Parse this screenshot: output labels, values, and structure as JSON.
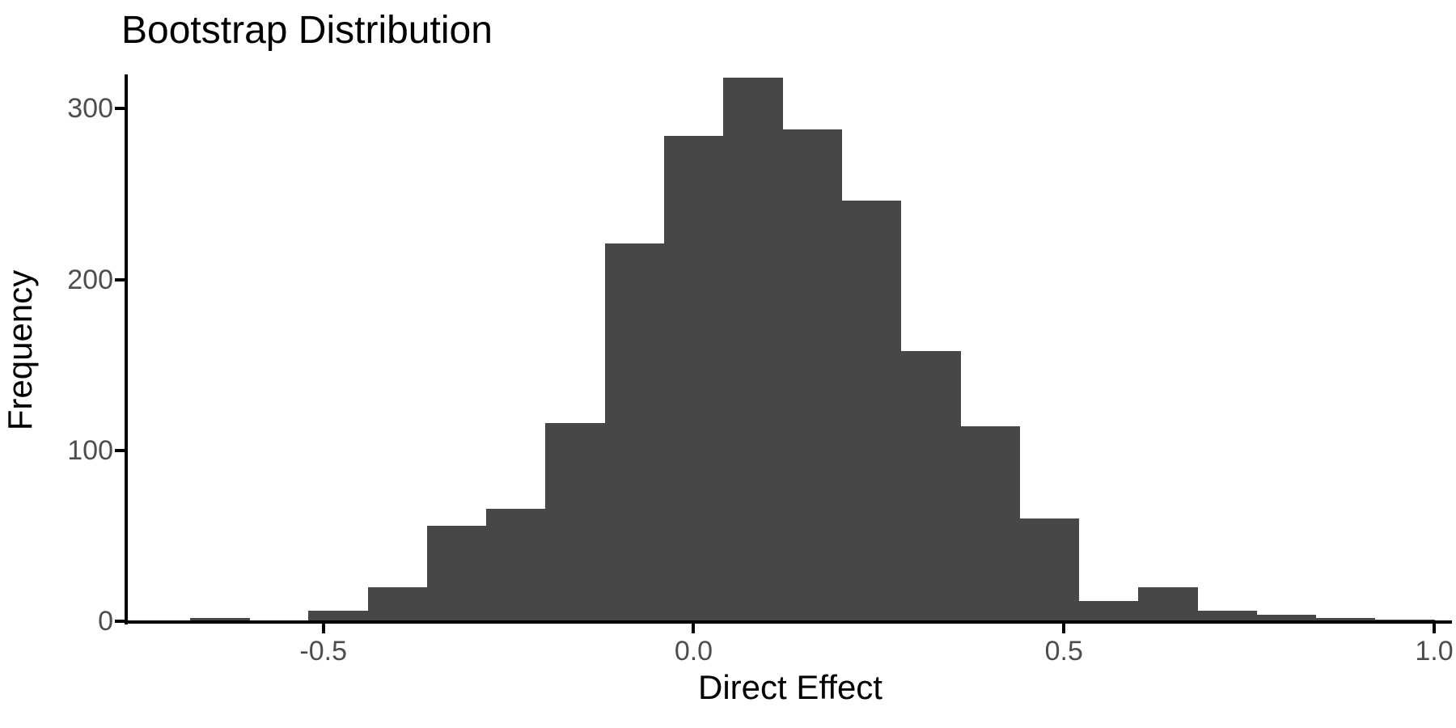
{
  "chart_data": {
    "type": "histogram",
    "title": "Bootstrap Distribution",
    "xlabel": "Direct Effect",
    "ylabel": "Frequency",
    "bar_color": "#474747",
    "axis_color": "#000000",
    "tick_label_color": "#4d4d4d",
    "background_color": "#ffffff",
    "grid": false,
    "legend": false,
    "bin_width": 0.08,
    "xlim": [
      -0.764,
      1.024
    ],
    "ylim": [
      0,
      320
    ],
    "x_ticks": [
      {
        "value": -0.5,
        "label": "-0.5"
      },
      {
        "value": 0.0,
        "label": "0.0"
      },
      {
        "value": 0.5,
        "label": "0.5"
      },
      {
        "value": 1.0,
        "label": "1.0"
      }
    ],
    "y_ticks": [
      {
        "value": 0,
        "label": "0"
      },
      {
        "value": 100,
        "label": "100"
      },
      {
        "value": 200,
        "label": "200"
      },
      {
        "value": 300,
        "label": "300"
      }
    ],
    "bins": [
      {
        "x0": -0.68,
        "x1": -0.6,
        "count": 2
      },
      {
        "x0": -0.6,
        "x1": -0.52,
        "count": 0
      },
      {
        "x0": -0.52,
        "x1": -0.44,
        "count": 6
      },
      {
        "x0": -0.44,
        "x1": -0.36,
        "count": 20
      },
      {
        "x0": -0.36,
        "x1": -0.28,
        "count": 56
      },
      {
        "x0": -0.28,
        "x1": -0.2,
        "count": 66
      },
      {
        "x0": -0.2,
        "x1": -0.12,
        "count": 116
      },
      {
        "x0": -0.12,
        "x1": -0.04,
        "count": 221
      },
      {
        "x0": -0.04,
        "x1": 0.04,
        "count": 284
      },
      {
        "x0": 0.04,
        "x1": 0.12,
        "count": 318
      },
      {
        "x0": 0.12,
        "x1": 0.2,
        "count": 288
      },
      {
        "x0": 0.2,
        "x1": 0.28,
        "count": 246
      },
      {
        "x0": 0.28,
        "x1": 0.36,
        "count": 158
      },
      {
        "x0": 0.36,
        "x1": 0.44,
        "count": 114
      },
      {
        "x0": 0.44,
        "x1": 0.52,
        "count": 60
      },
      {
        "x0": 0.52,
        "x1": 0.6,
        "count": 12
      },
      {
        "x0": 0.6,
        "x1": 0.68,
        "count": 20
      },
      {
        "x0": 0.68,
        "x1": 0.76,
        "count": 6
      },
      {
        "x0": 0.76,
        "x1": 0.84,
        "count": 4
      },
      {
        "x0": 0.84,
        "x1": 0.92,
        "count": 2
      },
      {
        "x0": 0.92,
        "x1": 1.0,
        "count": 1
      }
    ]
  }
}
